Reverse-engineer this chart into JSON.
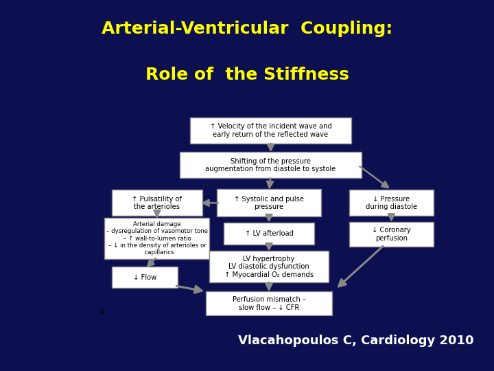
{
  "title_line1": "Arterial-Ventricular  Coupling:",
  "title_line2": "Role of  the Stiffness",
  "title_color": "#FFFF00",
  "bg_color": "#0D1050",
  "citation": "Vlacahopoulos C, Cardiology 2010",
  "citation_color": "#FFFFFF",
  "image_bg": "#FFFFFF",
  "box_edge_color": "#888888",
  "box_fill": "#FFFFFF",
  "arrow_color": "#888888"
}
